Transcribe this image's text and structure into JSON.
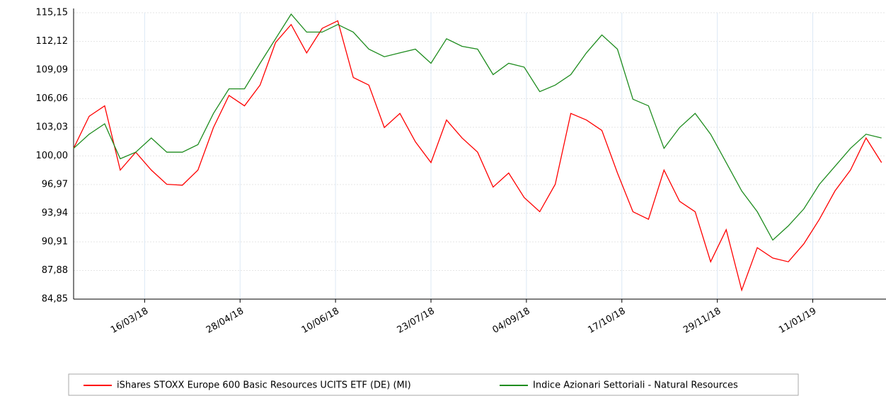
{
  "chart_data": {
    "type": "line",
    "x": [
      "12/02/18",
      "19/02/18",
      "26/02/18",
      "05/03/18",
      "12/03/18",
      "19/03/18",
      "26/03/18",
      "02/04/18",
      "09/04/18",
      "16/04/18",
      "23/04/18",
      "30/04/18",
      "07/05/18",
      "14/05/18",
      "21/05/18",
      "28/05/18",
      "04/06/18",
      "11/06/18",
      "18/06/18",
      "25/06/18",
      "02/07/18",
      "09/07/18",
      "16/07/18",
      "23/07/18",
      "30/07/18",
      "06/08/18",
      "13/08/18",
      "20/08/18",
      "27/08/18",
      "03/09/18",
      "10/09/18",
      "17/09/18",
      "24/09/18",
      "01/10/18",
      "08/10/18",
      "15/10/18",
      "22/10/18",
      "29/10/18",
      "05/11/18",
      "12/11/18",
      "19/11/18",
      "26/11/18",
      "03/12/18",
      "10/12/18",
      "17/12/18",
      "24/12/18",
      "31/12/18",
      "07/01/19",
      "14/01/19",
      "21/01/19",
      "28/01/19",
      "04/02/19",
      "11/02/19"
    ],
    "series": [
      {
        "name": "iShares STOXX Europe 600 Basic Resources UCITS ETF (DE) (MI)",
        "color": "#ff0000",
        "values": [
          100.8,
          104.2,
          105.3,
          98.5,
          100.4,
          98.5,
          97.0,
          96.9,
          98.5,
          103.0,
          106.4,
          105.3,
          107.5,
          112.0,
          113.9,
          110.9,
          113.5,
          114.3,
          108.3,
          107.5,
          103.0,
          104.5,
          101.5,
          99.3,
          103.8,
          101.9,
          100.4,
          96.7,
          98.2,
          95.6,
          94.1,
          97.0,
          104.5,
          103.8,
          102.7,
          98.2,
          94.1,
          93.3,
          98.5,
          95.2,
          94.1,
          88.8,
          92.2,
          85.8,
          90.3,
          89.2,
          88.8,
          90.7,
          93.3,
          96.3,
          98.5,
          101.9,
          99.3
        ]
      },
      {
        "name": "Indice Azionari Settoriali - Natural Resources",
        "color": "#1e8c1e",
        "values": [
          100.8,
          102.3,
          103.4,
          99.7,
          100.4,
          101.9,
          100.4,
          100.4,
          101.2,
          104.5,
          107.1,
          107.1,
          109.8,
          112.4,
          115.0,
          113.1,
          113.1,
          113.9,
          113.1,
          111.3,
          110.5,
          110.9,
          111.3,
          109.8,
          112.4,
          111.6,
          111.3,
          108.6,
          109.8,
          109.4,
          106.8,
          107.5,
          108.6,
          110.9,
          112.8,
          111.3,
          106.0,
          105.3,
          100.8,
          103.0,
          104.5,
          102.3,
          99.3,
          96.3,
          94.1,
          91.1,
          92.6,
          94.4,
          97.0,
          98.9,
          100.8,
          102.3,
          101.9
        ]
      }
    ],
    "xlim": [
      "12/02/18",
      "13/02/19"
    ],
    "xticks": [
      "16/03/18",
      "28/04/18",
      "10/06/18",
      "23/07/18",
      "04/09/18",
      "17/10/18",
      "29/11/18",
      "11/01/19"
    ],
    "ylim": [
      84.85,
      115.15
    ],
    "yticks": [
      {
        "value": 84.85,
        "label": "84,85"
      },
      {
        "value": 87.88,
        "label": "87,88"
      },
      {
        "value": 90.91,
        "label": "90,91"
      },
      {
        "value": 93.94,
        "label": "93,94"
      },
      {
        "value": 96.97,
        "label": "96,97"
      },
      {
        "value": 100,
        "label": "100,00"
      },
      {
        "value": 103.03,
        "label": "103,03"
      },
      {
        "value": 106.06,
        "label": "106,06"
      },
      {
        "value": 109.09,
        "label": "109,09"
      },
      {
        "value": 112.12,
        "label": "112,12"
      },
      {
        "value": 115.15,
        "label": "115,15"
      }
    ],
    "grid": true,
    "legend": "bottom"
  }
}
